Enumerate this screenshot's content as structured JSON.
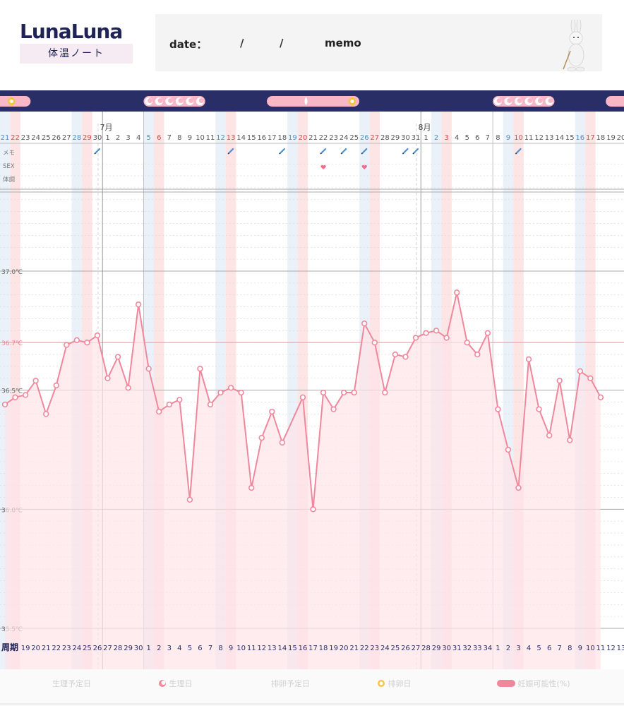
{
  "header": {
    "logo": "LunaLuna",
    "logo_sub": "体温ノート",
    "date_label": "date：",
    "slash": "/",
    "memo_label": "memo"
  },
  "legend": {
    "predicted_period": "生理予定日",
    "period": "生理日",
    "predicted_ovulation": "排卵予定日",
    "ovulation": "排卵日",
    "fertile": "妊娠可能性(%)"
  },
  "colors": {
    "top_bar": "#2a2e66",
    "line": "#f0889c",
    "fill": "#fde4e8",
    "blue_band": "#e6eef8",
    "pink_band": "#fde0e2",
    "orange_band": "#fde7da",
    "ref_line": "#f0a0ac"
  },
  "chart_data": {
    "type": "line",
    "title": "",
    "xlabel": "",
    "ylabel": "",
    "ylim": [
      35.5,
      37.5
    ],
    "y_ticks": [
      "37.0℃",
      "36.7℃",
      "36.5℃",
      "36.0℃",
      "35.5℃"
    ],
    "reference_line": 36.7,
    "row_labels": [
      "メモ",
      "SEX",
      "体調"
    ],
    "cycle_label": "周期",
    "month_labels": [
      {
        "label": "7月",
        "index": 10
      },
      {
        "label": "8月",
        "index": 41
      }
    ],
    "dates": [
      "21",
      "22",
      "23",
      "24",
      "25",
      "26",
      "27",
      "28",
      "29",
      "30",
      "1",
      "2",
      "3",
      "4",
      "5",
      "6",
      "7",
      "8",
      "9",
      "10",
      "11",
      "12",
      "13",
      "14",
      "15",
      "16",
      "17",
      "18",
      "19",
      "20",
      "21",
      "22",
      "23",
      "24",
      "25",
      "26",
      "27",
      "28",
      "29",
      "30",
      "31",
      "1",
      "2",
      "3",
      "4",
      "5",
      "6",
      "7",
      "8",
      "9",
      "10",
      "11",
      "12",
      "13",
      "14",
      "15",
      "16",
      "17",
      "18",
      "19",
      "20"
    ],
    "date_color": [
      "blue",
      "red",
      "gray",
      "gray",
      "gray",
      "gray",
      "gray",
      "blue",
      "red",
      "gray",
      "gray",
      "gray",
      "gray",
      "gray",
      "blue",
      "red",
      "gray",
      "gray",
      "gray",
      "gray",
      "gray",
      "blue",
      "red",
      "gray",
      "gray",
      "gray",
      "gray",
      "gray",
      "blue",
      "red",
      "gray",
      "gray",
      "gray",
      "gray",
      "gray",
      "blue",
      "red",
      "gray",
      "gray",
      "gray",
      "gray",
      "gray",
      "blue",
      "red",
      "gray",
      "gray",
      "gray",
      "gray",
      "gray",
      "blue",
      "red",
      "gray",
      "gray",
      "gray",
      "gray",
      "gray",
      "blue",
      "red",
      "gray",
      "gray",
      "gray"
    ],
    "cycle_days": [
      "",
      "18",
      "19",
      "20",
      "21",
      "22",
      "23",
      "24",
      "25",
      "26",
      "27",
      "28",
      "29",
      "30",
      "1",
      "2",
      "3",
      "4",
      "5",
      "6",
      "7",
      "8",
      "9",
      "10",
      "11",
      "12",
      "13",
      "14",
      "15",
      "16",
      "17",
      "18",
      "19",
      "20",
      "21",
      "22",
      "23",
      "24",
      "25",
      "26",
      "27",
      "28",
      "29",
      "30",
      "31",
      "32",
      "33",
      "34",
      "1",
      "2",
      "3",
      "4",
      "5",
      "6",
      "7",
      "8",
      "9",
      "10",
      "11",
      "12",
      "13"
    ],
    "memo_marks": [
      9,
      22,
      27,
      31,
      33,
      35,
      39,
      40,
      50
    ],
    "sex_marks": [
      31,
      35
    ],
    "temperatures": [
      36.44,
      36.47,
      36.48,
      36.54,
      36.4,
      36.52,
      36.69,
      36.71,
      36.7,
      36.73,
      36.55,
      36.64,
      36.51,
      36.86,
      36.59,
      36.41,
      36.44,
      36.46,
      36.04,
      36.59,
      36.44,
      36.49,
      36.51,
      36.49,
      36.09,
      36.3,
      36.41,
      36.28,
      null,
      36.47,
      36.0,
      36.49,
      36.42,
      36.49,
      36.49,
      36.78,
      36.7,
      36.49,
      36.65,
      36.64,
      36.72,
      36.74,
      36.75,
      36.72,
      36.91,
      36.7,
      36.65,
      36.74,
      36.42,
      36.25,
      36.09,
      36.63,
      36.42,
      36.31,
      36.54,
      36.29,
      36.58,
      36.55,
      36.47,
      null,
      null
    ],
    "top_bar_capsules": [
      {
        "from": -1,
        "to": 2,
        "icons": [
          "ovulation"
        ]
      },
      {
        "from": 14,
        "to": 19,
        "icons": [
          "period",
          "period",
          "period",
          "period",
          "period",
          "period"
        ]
      },
      {
        "from": 26,
        "to": 34,
        "icons": [
          "drop",
          "ovulation"
        ]
      },
      {
        "from": 48,
        "to": 53,
        "icons": [
          "period",
          "period",
          "period",
          "period",
          "period",
          "period"
        ]
      },
      {
        "from": 59,
        "to": 62,
        "icons": []
      }
    ]
  }
}
